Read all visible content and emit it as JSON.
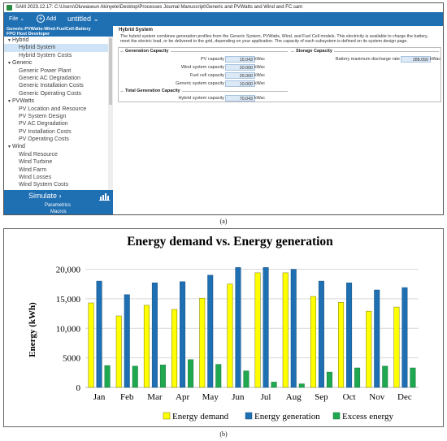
{
  "window": {
    "title": "SAM 2023.12.17: C:\\Users\\Oluwaseun Akinyele\\Desktop\\Processes Journal Manuscript\\Generic and PVWatts and Wind and FC.sam"
  },
  "toolbar": {
    "file_label": "File ⌄",
    "add_label": "Add",
    "case_tab_label": "untitled ⌄"
  },
  "sidebar": {
    "case_header_line1": "Generic-PVWatts-Wind-FuelCell-Battery",
    "case_header_line2": "FPO Host Developer",
    "groups": [
      {
        "label": "Hybrid",
        "items": [
          "Hybrid System",
          "Hybrid System Costs"
        ]
      },
      {
        "label": "Generic",
        "items": [
          "Generic Power Plant",
          "Generic AC Degradation",
          "Generic Installation Costs",
          "Generic Operating Costs"
        ]
      },
      {
        "label": "PVWatts",
        "items": [
          "PV Location and Resource",
          "PV System Design",
          "PV AC Degradation",
          "PV Installation Costs",
          "PV Operating Costs"
        ]
      },
      {
        "label": "Wind",
        "items": [
          "Wind Resource",
          "Wind Turbine",
          "Wind Farm",
          "Wind Losses",
          "Wind System Costs"
        ]
      }
    ],
    "selected_item": "Hybrid System",
    "simulate_label": "Simulate ›",
    "parametrics_label": "Parametrics",
    "macros_label": "Macros"
  },
  "main": {
    "section_title": "Hybrid System",
    "description": "The hybrid system combines generation profiles from the Generic System, PVWatts, Wind, and Fuel Cell models. This electricity is available to charge the battery, meet the electric load, or be delivered to the grid, depending on your application. The capacity of each subsystem is defined on its system design page.",
    "generation_capacity": {
      "title": "Generation Capacity",
      "rows": [
        {
          "label": "PV capacity",
          "value": "15.043",
          "unit": "kWac"
        },
        {
          "label": "Wind system capacity",
          "value": "20.000",
          "unit": "kWac"
        },
        {
          "label": "Fuel cell capacity",
          "value": "25.000",
          "unit": "kWac"
        },
        {
          "label": "Generic system capacity",
          "value": "10.000",
          "unit": "kWac"
        }
      ]
    },
    "storage_capacity": {
      "title": "Storage Capacity",
      "rows": [
        {
          "label": "Battery maximum discharge rate",
          "value": "288.050",
          "unit": "kWac"
        }
      ]
    },
    "total_generation_capacity": {
      "title": "Total Generation Capacity",
      "rows": [
        {
          "label": "Hybrid system capacity",
          "value": "70.043",
          "unit": "kWac"
        }
      ]
    }
  },
  "captions": {
    "a": "(a)",
    "b": "(b)"
  },
  "colors": {
    "accent_blue": "#1f6fb3",
    "energy_demand": "#ffff00",
    "energy_generation": "#1f6fb3",
    "excess_energy": "#1fa84f"
  },
  "chart_data": {
    "type": "bar",
    "title": "Energy demand vs. Energy generation",
    "ylabel": "Energy (kWh)",
    "xlabel": "",
    "ylim": [
      0,
      22000
    ],
    "yticks": [
      {
        "value": 0,
        "label": "0"
      },
      {
        "value": 5000,
        "label": "5000"
      },
      {
        "value": 10000,
        "label": "10,000"
      },
      {
        "value": 15000,
        "label": "15,000"
      },
      {
        "value": 20000,
        "label": "20,000"
      }
    ],
    "grid": true,
    "legend": "bottom",
    "categories": [
      "Jan",
      "Feb",
      "Mar",
      "Apr",
      "May",
      "Jun",
      "Jul",
      "Aug",
      "Sep",
      "Oct",
      "Nov",
      "Dec"
    ],
    "series": [
      {
        "name": "Energy demand",
        "values": [
          14300,
          12100,
          13900,
          13200,
          15100,
          17500,
          19400,
          19400,
          15400,
          14400,
          12900,
          13600
        ]
      },
      {
        "name": "Energy generation",
        "values": [
          18000,
          15700,
          17700,
          17900,
          19000,
          20300,
          20300,
          20000,
          18000,
          17700,
          16500,
          16900
        ]
      },
      {
        "name": "Excess energy",
        "values": [
          3700,
          3600,
          3800,
          4700,
          3900,
          2800,
          900,
          600,
          2600,
          3300,
          3600,
          3300
        ]
      }
    ]
  }
}
